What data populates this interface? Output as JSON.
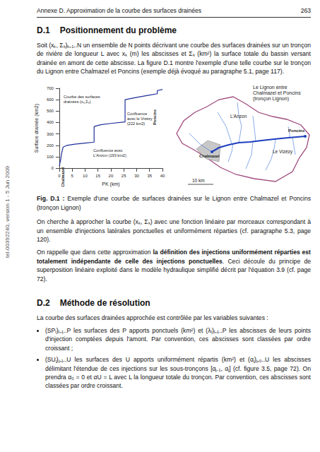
{
  "header": {
    "title": "Annexe D. Approximation de la courbe des surfaces drainées",
    "page": "263"
  },
  "margin_note": "tel-00392240, version 1 - 5 Jun 2009",
  "section1": {
    "number": "D.1",
    "title": "Positionnement du problème",
    "paragraphs": [
      [
        {
          "text": "Soit (xₖ, Σₖ)ₖ₌₁..N un ensemble de N points décrivant une courbe des surfaces drainées sur un tronçon de rivière de longueur L avec xₖ (m) les abscisses et Σₖ (km²) la surface totale du bassin versant drainée en amont de cette abscisse. La figure D.1 montre l'exemple d'une telle courbe sur le tronçon du Lignon entre Chalmazel et Poncins (exemple déjà évoqué au paragraphe 5.1, page 117)."
        }
      ]
    ]
  },
  "chart_data": {
    "type": "line",
    "xlabel": "PK (km)",
    "ylabel": "Surface drainée (km2)",
    "x": [
      0,
      0.5,
      1,
      1.5,
      3,
      6,
      10,
      13.5,
      13.5,
      16,
      20,
      25.5,
      25.5,
      30,
      35,
      38,
      38,
      40
    ],
    "values": [
      20,
      70,
      140,
      185,
      200,
      210,
      220,
      228,
      365,
      380,
      392,
      405,
      600,
      620,
      640,
      652,
      680,
      690
    ],
    "color": "#1f2f9a",
    "xlim": [
      0,
      40
    ],
    "xticks": [
      0,
      5,
      10,
      15,
      20,
      25,
      30,
      35,
      40
    ],
    "ylim": [
      0,
      700
    ],
    "yticks": [
      0,
      100,
      200,
      300,
      400,
      500,
      600,
      700
    ],
    "grid": false,
    "annotations": {
      "curve_label": [
        "Courbe des surfaces",
        "drainées (xₖ,Σₖ)"
      ],
      "confluence_vizezy": [
        "Confluence",
        "avec le Vizézy",
        "(222 km2)"
      ],
      "confluence_anzon": [
        "Confluence avec",
        "L'Anzon (193 km2)"
      ],
      "start_label": "Chalmazel",
      "end_label": "Poncins"
    }
  },
  "map": {
    "title": [
      "Le Lignon entre",
      "Chalmazel et Poncins",
      "(tronçon Lignon)"
    ],
    "labels": {
      "anzon": "L'Anzon",
      "poncins": "Poncins",
      "vizezy": "Le Vizézy",
      "chalmazel": "Chalmazel"
    },
    "scale": "10 km"
  },
  "caption": {
    "label": "Fig. D.1 :",
    "text": "Exemple d'une courbe de surfaces drainées sur le Lignon entre Chalmazel et Poncins (tronçon Lignon)"
  },
  "after_figure": [
    [
      {
        "text": "On cherche à approcher la courbe (xₖ, Σₖ) avec une fonction linéaire par morceaux correspondant à un ensemble d'injections latérales ponctuelles et uniformément réparties (cf. paragraphe 5.3, page 120)."
      }
    ],
    [
      {
        "text": "On rappelle que dans cette approximation "
      },
      {
        "text": "la définition des injections uniformément réparties est totalement indépendante de celle des injections ponctuelles",
        "bold": true
      },
      {
        "text": ". Ceci découle du principe de superposition linéaire exploité dans le modèle hydraulique simplifié décrit par l'équation 3.9 (cf. page 72)."
      }
    ]
  ],
  "section2": {
    "number": "D.2",
    "title": "Méthode de résolution",
    "intro": "La courbe des surfaces drainées approchée est contrôlée par les variables suivantes :",
    "bullets": [
      "(SPᵢ)ᵢ₌₁..P les surfaces des P apports ponctuels (km²) et (λᵢ)ᵢ₌₁..P les abscisses de leurs points d'injection comptées depuis l'amont. Par convention, ces abscisses sont classées par ordre croissant ;",
      "(SUⱼ)ⱼ₌₁..U les surfaces des U apports uniformément répartis (km²) et (αⱼ)ⱼ₌₀..U les abscisses délimitant l'étendue de ces injections sur les sous-tronçons [αⱼ₋₁, αⱼ] (cf. figure 3.5, page 72). On prendra α₀ = 0 et αU = L avec L la longueur totale du tronçon. Par convention, ces abscisses sont classées par ordre croissant."
    ]
  }
}
